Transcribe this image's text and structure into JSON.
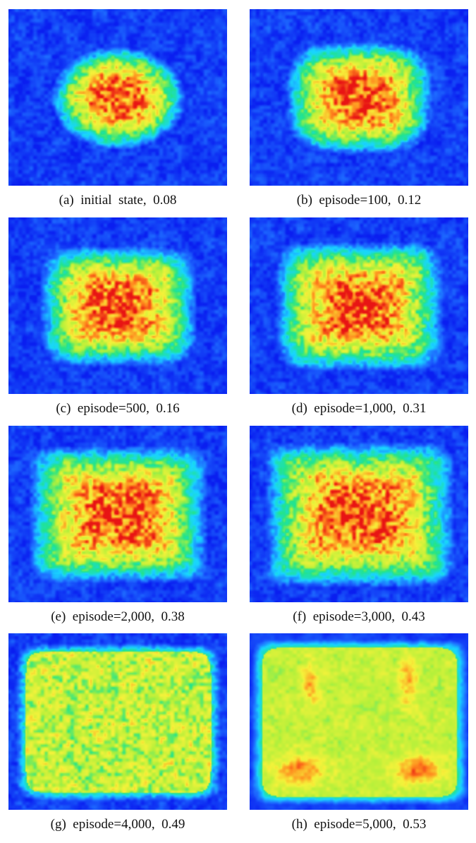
{
  "panels": [
    {
      "caption": "(a)  initial  state,  0.08",
      "uniformity": 0.08,
      "stage": 0
    },
    {
      "caption": "(b)  episode=100,  0.12",
      "uniformity": 0.12,
      "stage": 1
    },
    {
      "caption": "(c)  episode=500,  0.16",
      "uniformity": 0.16,
      "stage": 2
    },
    {
      "caption": "(d)  episode=1,000,  0.31",
      "uniformity": 0.31,
      "stage": 3
    },
    {
      "caption": "(e)  episode=2,000,  0.38",
      "uniformity": 0.38,
      "stage": 4
    },
    {
      "caption": "(f)  episode=3,000,  0.43",
      "uniformity": 0.43,
      "stage": 5
    },
    {
      "caption": "(g)  episode=4,000,  0.49",
      "uniformity": 0.49,
      "stage": 6
    },
    {
      "caption": "(h)  episode=5,000,  0.53",
      "uniformity": 0.53,
      "stage": 7
    }
  ],
  "colormap": [
    "#0a1ef0",
    "#1e6bff",
    "#19d6ff",
    "#22e48a",
    "#b6f03a",
    "#f6f23a",
    "#ff8a1e",
    "#e81414"
  ]
}
